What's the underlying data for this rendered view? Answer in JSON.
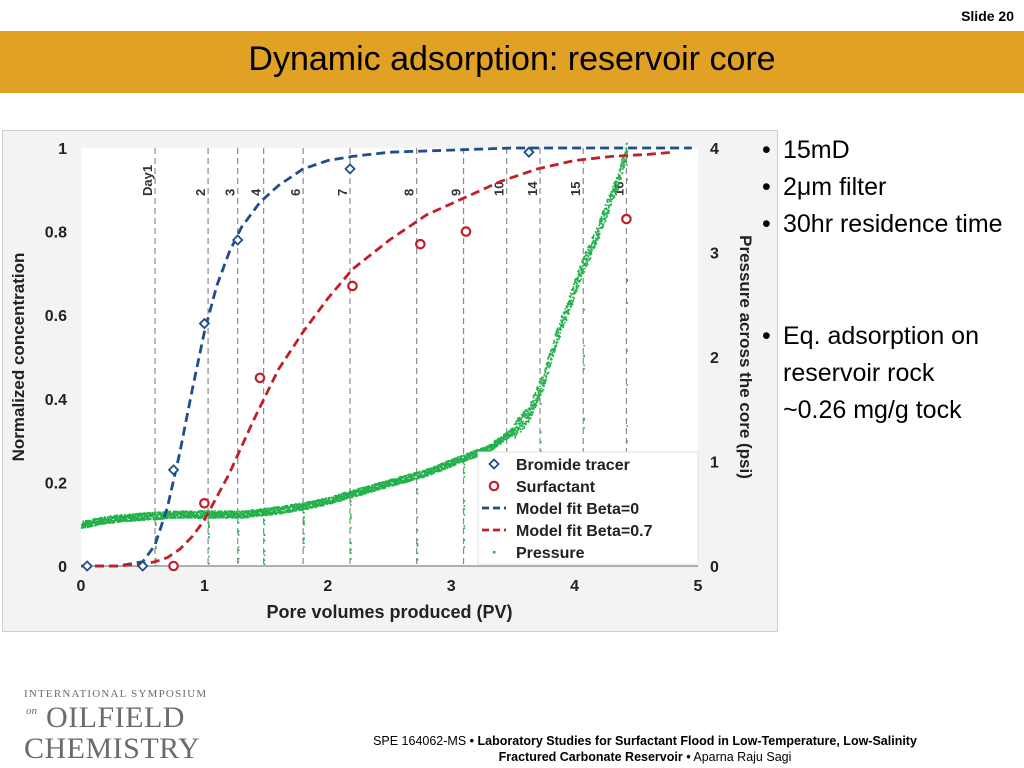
{
  "slide_number": "Slide 20",
  "title": "Dynamic adsorption: reservoir core",
  "bullets": {
    "b1": "15mD",
    "b2": "2μm filter",
    "b3": "30hr residence time",
    "b4_line1": "Eq. adsorption on reservoir rock",
    "b4_line2": "~0.26 mg/g tock"
  },
  "logo": {
    "line1": "INTERNATIONAL SYMPOSIUM",
    "line2": "on",
    "line3": "OILFIELD",
    "line4": "CHEMISTRY"
  },
  "footer": {
    "paper_id": "SPE 164062-MS",
    "sep": "•",
    "title_part1": "Laboratory Studies for Surfactant Flood in Low-Temperature, Low-Salinity",
    "title_part2": "Fractured Carbonate Reservoir",
    "author": "Aparna Raju Sagi"
  },
  "chart_data": {
    "type": "scatter",
    "xlabel": "Pore volumes produced (PV)",
    "ylabel": "Normalized concentration",
    "y2label": "Pressure across the core (psi)",
    "xlim": [
      0,
      5
    ],
    "ylim": [
      0,
      1
    ],
    "y2lim": [
      0,
      4
    ],
    "xticks": [
      "0",
      "1",
      "2",
      "3",
      "4",
      "5"
    ],
    "yticks": [
      "0",
      "0.2",
      "0.4",
      "0.6",
      "0.8",
      "1"
    ],
    "y2ticks": [
      "0",
      "1",
      "2",
      "3",
      "4"
    ],
    "grid": "vertical day markers",
    "legend_position": "bottom-right",
    "day_markers": [
      {
        "label": "Day1",
        "x": 0.6
      },
      {
        "label": "2",
        "x": 1.03
      },
      {
        "label": "3",
        "x": 1.27
      },
      {
        "label": "4",
        "x": 1.48
      },
      {
        "label": "6",
        "x": 1.8
      },
      {
        "label": "7",
        "x": 2.18
      },
      {
        "label": "8",
        "x": 2.72
      },
      {
        "label": "9",
        "x": 3.1
      },
      {
        "label": "10",
        "x": 3.45
      },
      {
        "label": "14",
        "x": 3.72
      },
      {
        "label": "15",
        "x": 4.07
      },
      {
        "label": "16",
        "x": 4.42
      }
    ],
    "series": [
      {
        "name": "Bromide tracer",
        "kind": "marker-diamond",
        "color": "#1f4e8c",
        "x": [
          0.05,
          0.5,
          0.75,
          1.0,
          1.27,
          2.18,
          3.63
        ],
        "y": [
          0.0,
          0.0,
          0.23,
          0.58,
          0.78,
          0.95,
          0.99
        ]
      },
      {
        "name": "Surfactant",
        "kind": "marker-circle",
        "color": "#c0202a",
        "x": [
          0.75,
          1.0,
          1.45,
          2.2,
          2.75,
          3.12,
          4.42
        ],
        "y": [
          0.0,
          0.15,
          0.45,
          0.67,
          0.77,
          0.8,
          0.83
        ]
      },
      {
        "name": "Model fit Beta=0",
        "kind": "dashed-line",
        "color": "#1f4e8c",
        "x": [
          0.0,
          0.3,
          0.5,
          0.6,
          0.7,
          0.8,
          0.9,
          1.0,
          1.1,
          1.2,
          1.3,
          1.45,
          1.6,
          1.8,
          2.0,
          2.2,
          2.5,
          3.0,
          3.5,
          4.0,
          4.5,
          4.95
        ],
        "y": [
          0.0,
          0.0,
          0.01,
          0.05,
          0.14,
          0.27,
          0.42,
          0.56,
          0.67,
          0.75,
          0.81,
          0.87,
          0.91,
          0.95,
          0.97,
          0.98,
          0.99,
          0.995,
          1.0,
          1.0,
          1.0,
          1.0
        ]
      },
      {
        "name": "Model fit Beta=0.7",
        "kind": "dashed-line",
        "color": "#c0202a",
        "x": [
          0.0,
          0.3,
          0.5,
          0.6,
          0.7,
          0.8,
          0.9,
          1.0,
          1.2,
          1.4,
          1.6,
          1.8,
          2.0,
          2.2,
          2.5,
          2.8,
          3.1,
          3.4,
          3.7,
          4.0,
          4.3,
          4.6,
          4.8
        ],
        "y": [
          0.0,
          0.0,
          0.005,
          0.01,
          0.02,
          0.04,
          0.07,
          0.11,
          0.22,
          0.35,
          0.47,
          0.56,
          0.64,
          0.71,
          0.78,
          0.84,
          0.88,
          0.92,
          0.95,
          0.97,
          0.98,
          0.985,
          0.99
        ]
      },
      {
        "name": "Pressure",
        "kind": "dots",
        "axis": "y2",
        "color": "#22b04b",
        "x": [
          0.0,
          0.2,
          0.5,
          0.8,
          1.0,
          1.3,
          1.6,
          1.9,
          2.2,
          2.5,
          2.8,
          3.1,
          3.3,
          3.5,
          3.62,
          3.75,
          3.85,
          3.95,
          4.05,
          4.15,
          4.25,
          4.35,
          4.42
        ],
        "y": [
          0.4,
          0.45,
          0.48,
          0.5,
          0.5,
          0.5,
          0.54,
          0.6,
          0.7,
          0.8,
          0.9,
          1.04,
          1.13,
          1.3,
          1.45,
          1.8,
          2.2,
          2.5,
          2.85,
          3.1,
          3.4,
          3.7,
          4.0
        ]
      }
    ]
  }
}
